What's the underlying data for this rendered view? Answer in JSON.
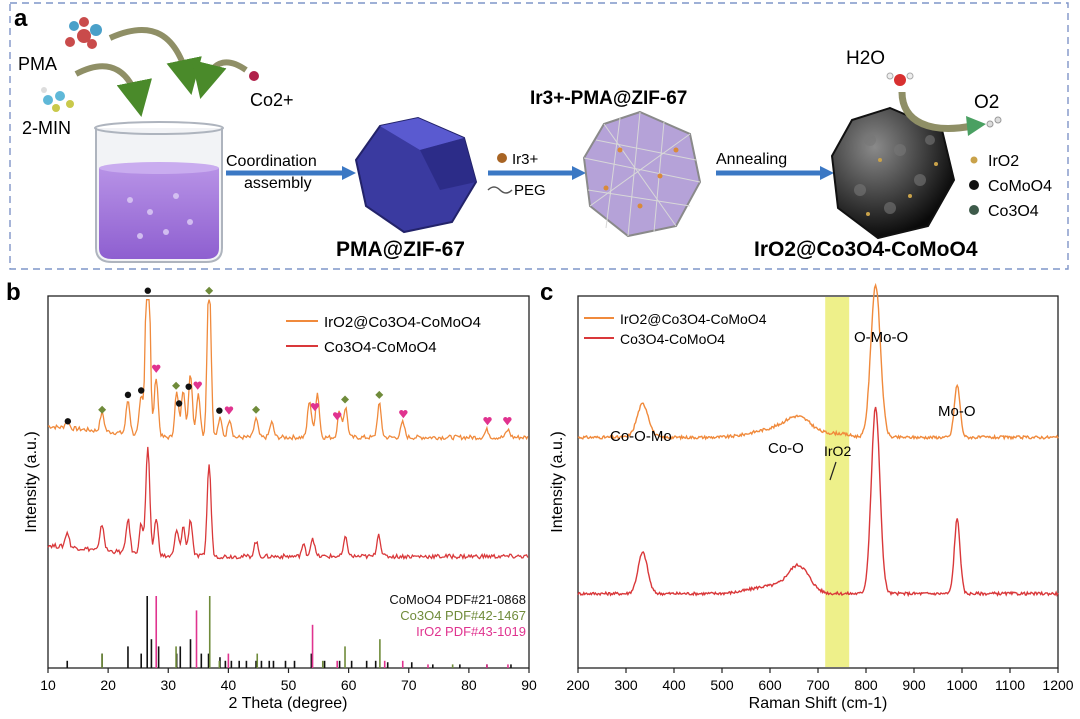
{
  "panel_a": {
    "letter": "a",
    "reagents": [
      "PMA",
      "2-MIN",
      "Co2+"
    ],
    "steps": [
      {
        "top": "Coordination",
        "bottom": "assembly"
      },
      {
        "top": "Ir3+",
        "bottom": "PEG"
      },
      {
        "top": "Annealing",
        "bottom": ""
      }
    ],
    "labels": {
      "intermediate1": "PMA@ZIF-67",
      "intermediate2": "Ir3+-PMA@ZIF-67",
      "product": "IrO2@Co3O4-CoMoO4",
      "h2o": "H2O",
      "o2": "O2"
    },
    "legend": [
      {
        "label": "IrO2",
        "color": "#c9a24a"
      },
      {
        "label": "CoMoO4",
        "color": "#111111"
      },
      {
        "label": "Co3O4",
        "color": "#3d5a4a"
      }
    ]
  },
  "chart_data": [
    {
      "panel": "b",
      "type": "line",
      "xlabel": "2 Theta (degree)",
      "ylabel": "Intensity (a.u.)",
      "xlim": [
        10,
        90
      ],
      "xticks": [
        10,
        20,
        30,
        40,
        50,
        60,
        70,
        80,
        90
      ],
      "legend_position": "top-right",
      "series": [
        {
          "name": "IrO2@Co3O4-CoMoO4",
          "color": "#f08a3c",
          "offset": 0.62,
          "peaks": [
            [
              13.2,
              0.02
            ],
            [
              19.0,
              0.05
            ],
            [
              23.3,
              0.09
            ],
            [
              25.5,
              0.1
            ],
            [
              26.6,
              0.66
            ],
            [
              28.0,
              0.16
            ],
            [
              31.4,
              0.12
            ],
            [
              32.5,
              0.13
            ],
            [
              33.7,
              0.17
            ],
            [
              35.0,
              0.12
            ],
            [
              36.8,
              0.44
            ],
            [
              38.6,
              0.05
            ],
            [
              40.2,
              0.05
            ],
            [
              44.6,
              0.05
            ],
            [
              47.2,
              0.04
            ],
            [
              53.5,
              0.1
            ],
            [
              54.8,
              0.12
            ],
            [
              58.5,
              0.07
            ],
            [
              59.5,
              0.08
            ],
            [
              65.1,
              0.09
            ],
            [
              69.0,
              0.04
            ],
            [
              83.0,
              0.02
            ],
            [
              86.5,
              0.02
            ]
          ]
        },
        {
          "name": "Co3O4-CoMoO4",
          "color": "#d9383a",
          "offset": 0.3,
          "peaks": [
            [
              13.2,
              0.04
            ],
            [
              19.0,
              0.07
            ],
            [
              23.3,
              0.09
            ],
            [
              25.5,
              0.08
            ],
            [
              26.6,
              0.29
            ],
            [
              28.0,
              0.1
            ],
            [
              31.4,
              0.07
            ],
            [
              32.5,
              0.08
            ],
            [
              33.7,
              0.1
            ],
            [
              36.8,
              0.25
            ],
            [
              44.6,
              0.04
            ],
            [
              52.5,
              0.03
            ],
            [
              54.0,
              0.05
            ],
            [
              59.5,
              0.05
            ],
            [
              65.0,
              0.06
            ]
          ]
        }
      ],
      "markers": {
        "circle": {
          "color": "#111111",
          "x": [
            13.3,
            23.3,
            25.5,
            26.6,
            31.8,
            33.4,
            38.5
          ]
        },
        "diamond": {
          "color": "#6f8b3a",
          "x": [
            19.0,
            31.3,
            36.8,
            44.6,
            59.4,
            65.1
          ]
        },
        "heart": {
          "color": "#e0338f",
          "x": [
            28.0,
            34.9,
            40.1,
            54.4,
            58.1,
            69.1,
            83.1,
            86.4
          ]
        }
      },
      "references": [
        {
          "label": "CoMoO4 PDF#21-0868",
          "color": "#111111",
          "sticks": [
            [
              13.2,
              0.1
            ],
            [
              19.0,
              0.2
            ],
            [
              23.3,
              0.3
            ],
            [
              25.5,
              0.2
            ],
            [
              26.5,
              1.0
            ],
            [
              27.2,
              0.4
            ],
            [
              28.4,
              0.3
            ],
            [
              31.4,
              0.2
            ],
            [
              32.0,
              0.3
            ],
            [
              33.7,
              0.4
            ],
            [
              35.5,
              0.2
            ],
            [
              36.7,
              0.2
            ],
            [
              38.6,
              0.15
            ],
            [
              39.5,
              0.1
            ],
            [
              40.5,
              0.1
            ],
            [
              41.8,
              0.1
            ],
            [
              43.0,
              0.1
            ],
            [
              44.6,
              0.1
            ],
            [
              45.5,
              0.1
            ],
            [
              46.8,
              0.1
            ],
            [
              47.5,
              0.1
            ],
            [
              49.5,
              0.1
            ],
            [
              51.0,
              0.1
            ],
            [
              53.8,
              0.2
            ],
            [
              56.0,
              0.1
            ],
            [
              58.5,
              0.1
            ],
            [
              60.5,
              0.1
            ],
            [
              63.0,
              0.1
            ],
            [
              64.5,
              0.1
            ],
            [
              66.5,
              0.08
            ],
            [
              70.5,
              0.08
            ],
            [
              74.0,
              0.05
            ],
            [
              78.5,
              0.05
            ],
            [
              83.0,
              0.05
            ],
            [
              87.0,
              0.05
            ]
          ]
        },
        {
          "label": "Co3O4 PDF#42-1467",
          "color": "#6f8b3a",
          "sticks": [
            [
              19.0,
              0.2
            ],
            [
              31.3,
              0.3
            ],
            [
              36.9,
              1.0
            ],
            [
              38.5,
              0.1
            ],
            [
              44.8,
              0.2
            ],
            [
              55.7,
              0.1
            ],
            [
              59.4,
              0.3
            ],
            [
              65.2,
              0.4
            ],
            [
              77.3,
              0.05
            ]
          ]
        },
        {
          "label": "IrO2 PDF#43-1019",
          "color": "#e0338f",
          "sticks": [
            [
              28.0,
              1.0
            ],
            [
              34.7,
              0.8
            ],
            [
              40.0,
              0.2
            ],
            [
              54.0,
              0.6
            ],
            [
              58.1,
              0.1
            ],
            [
              66.0,
              0.1
            ],
            [
              69.0,
              0.1
            ],
            [
              73.2,
              0.05
            ],
            [
              83.0,
              0.05
            ],
            [
              86.5,
              0.05
            ]
          ]
        }
      ]
    },
    {
      "panel": "c",
      "type": "line",
      "xlabel": "Raman Shift (cm-1)",
      "ylabel": "Intensity (a.u.)",
      "xlim": [
        200,
        1200
      ],
      "xticks": [
        200,
        300,
        400,
        500,
        600,
        700,
        800,
        900,
        1000,
        1100,
        1200
      ],
      "legend_position": "top-left",
      "highlight": {
        "label": "IrO2",
        "range": [
          715,
          765
        ],
        "color": "#eef08a"
      },
      "series": [
        {
          "name": "IrO2@Co3O4-CoMoO4",
          "color": "#f08a3c",
          "offset": 0.62,
          "peaks": [
            [
              335,
              0.09,
              12
            ],
            [
              600,
              0.02,
              40
            ],
            [
              660,
              0.05,
              28
            ],
            [
              740,
              0.01,
              25
            ],
            [
              820,
              0.41,
              10
            ],
            [
              990,
              0.14,
              6
            ]
          ]
        },
        {
          "name": "Co3O4-CoMoO4",
          "color": "#d9383a",
          "offset": 0.2,
          "peaks": [
            [
              335,
              0.11,
              10
            ],
            [
              600,
              0.02,
              40
            ],
            [
              660,
              0.07,
              22
            ],
            [
              820,
              0.5,
              9
            ],
            [
              990,
              0.2,
              6
            ]
          ]
        }
      ],
      "annotations": [
        "Co-O-Mo",
        "Co-O",
        "IrO2",
        "O-Mo-O",
        "Mo-O"
      ]
    }
  ]
}
